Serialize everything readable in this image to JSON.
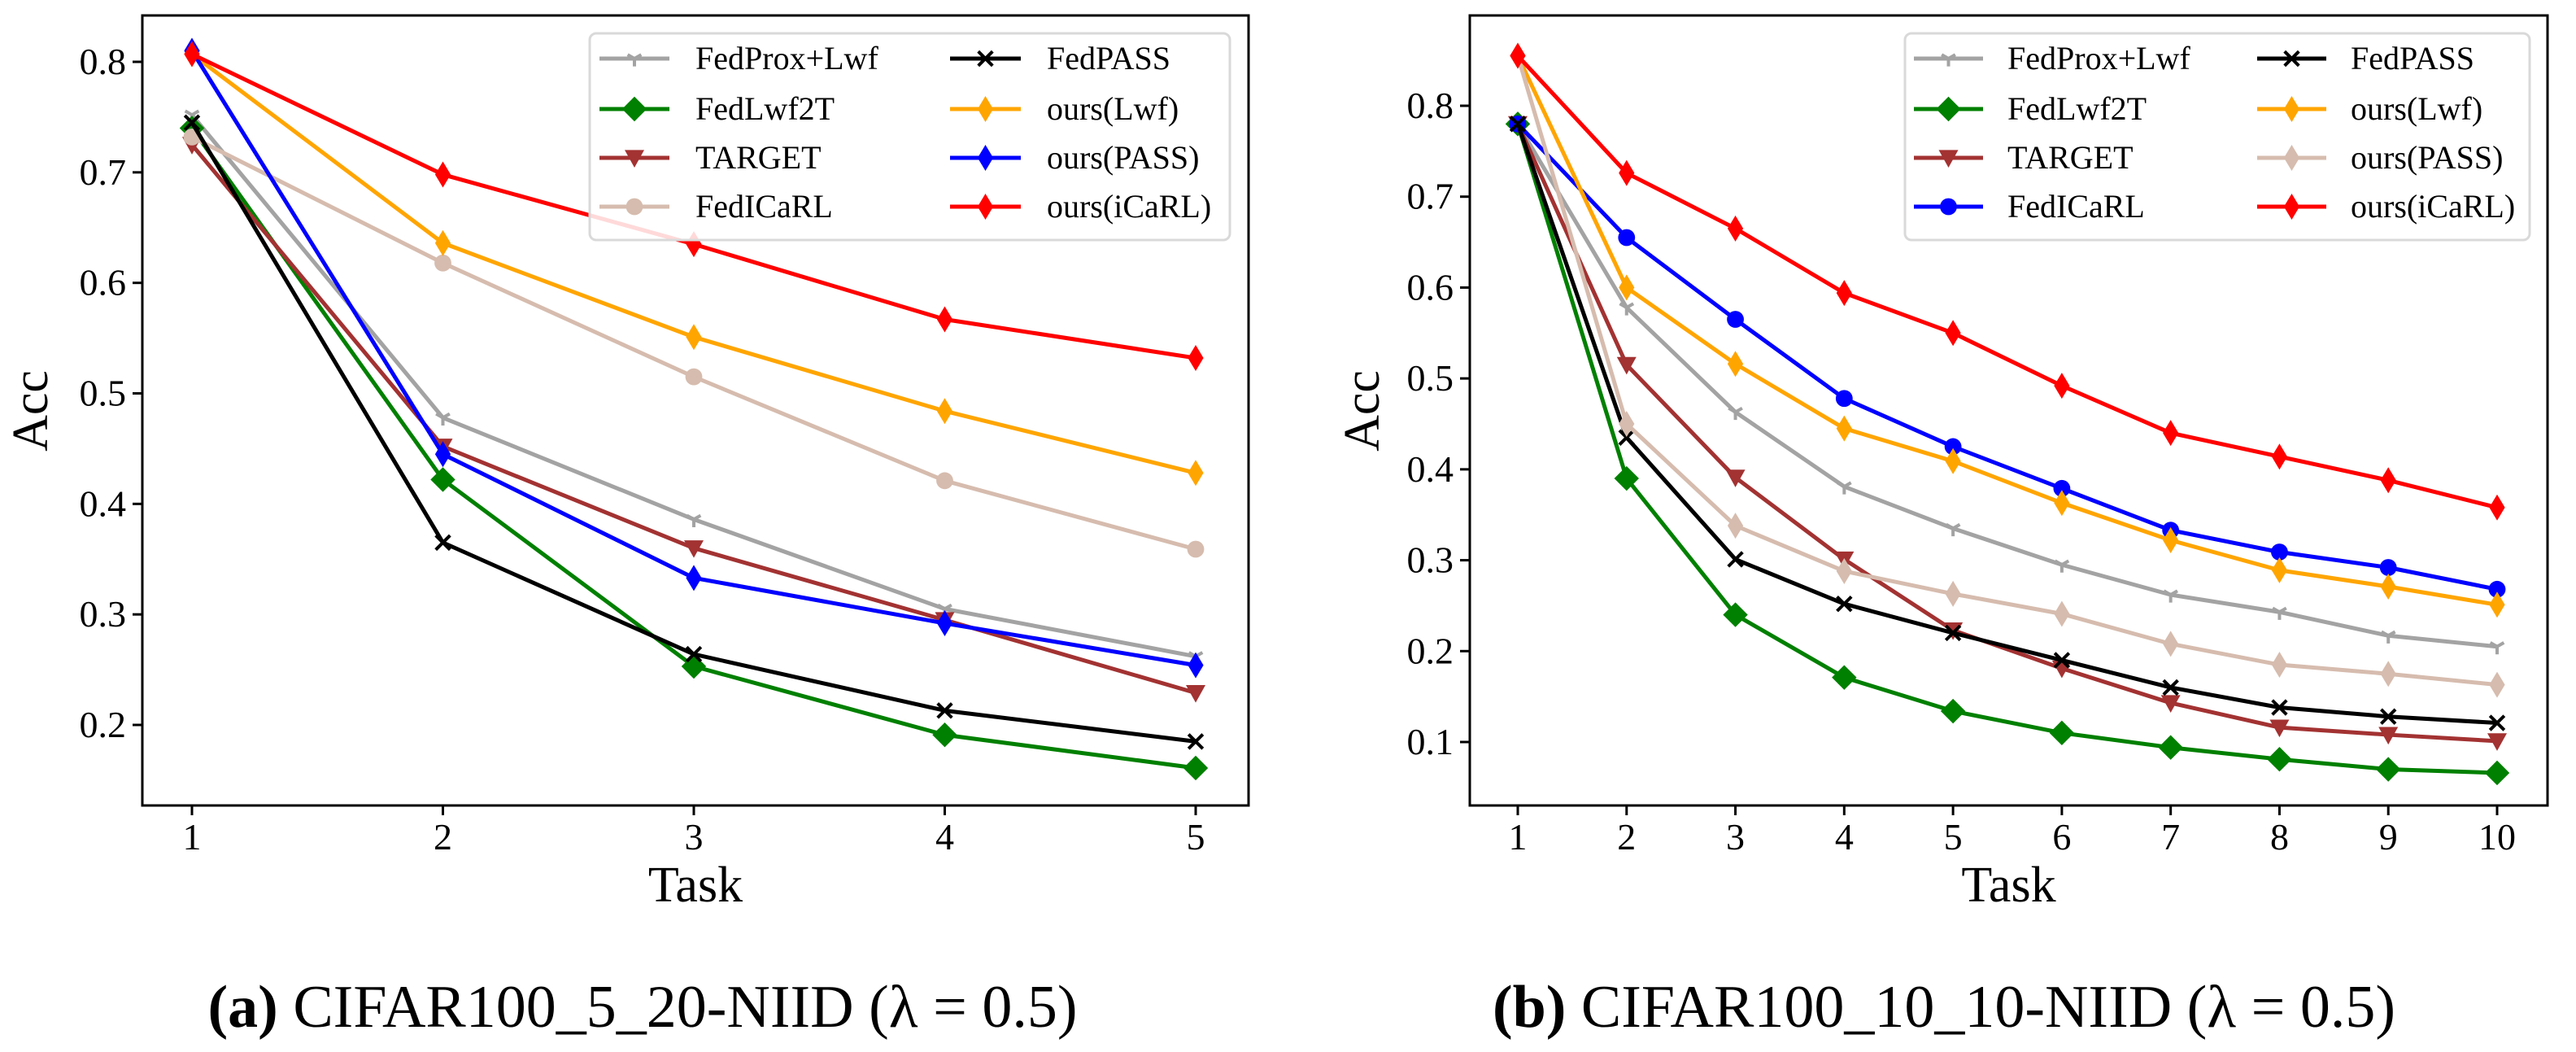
{
  "chart_data": [
    {
      "type": "line",
      "caption_label": "(a)",
      "caption_text": " CIFAR100_5_20-NIID (λ = 0.5)",
      "xlabel": "Task",
      "ylabel": "Acc",
      "x": [
        1,
        2,
        3,
        4,
        5
      ],
      "xticks": [
        "1",
        "2",
        "3",
        "4",
        "5"
      ],
      "yticks": [
        "0.2",
        "0.3",
        "0.4",
        "0.5",
        "0.6",
        "0.7",
        "0.8"
      ],
      "ytick_values": [
        0.2,
        0.3,
        0.4,
        0.5,
        0.6,
        0.7,
        0.8
      ],
      "legend_position": "top-right",
      "grid": false,
      "series": [
        {
          "name": "FedProx+Lwf",
          "color": "#a3a3a3",
          "marker": "tri_down",
          "values": [
            0.752,
            0.478,
            0.386,
            0.305,
            0.262
          ]
        },
        {
          "name": "FedLwf2T",
          "color": "#008000",
          "marker": "diamond",
          "values": [
            0.74,
            0.422,
            0.253,
            0.191,
            0.161
          ]
        },
        {
          "name": "TARGET",
          "color": "#a33232",
          "marker": "triangle_down",
          "values": [
            0.725,
            0.452,
            0.36,
            0.295,
            0.229
          ]
        },
        {
          "name": "FedICaRL",
          "color": "#d6bcae",
          "marker": "circle",
          "values": [
            0.732,
            0.618,
            0.515,
            0.421,
            0.359
          ]
        },
        {
          "name": "FedPASS",
          "color": "#000000",
          "marker": "x",
          "values": [
            0.745,
            0.365,
            0.264,
            0.213,
            0.185
          ]
        },
        {
          "name": "ours(Lwf)",
          "color": "#ffa500",
          "marker": "thin_diamond",
          "values": [
            0.807,
            0.636,
            0.551,
            0.484,
            0.428
          ]
        },
        {
          "name": "ours(PASS)",
          "color": "#0000ff",
          "marker": "thin_diamond",
          "values": [
            0.81,
            0.445,
            0.333,
            0.292,
            0.254
          ]
        },
        {
          "name": "ours(iCaRL)",
          "color": "#ff0000",
          "marker": "thin_diamond",
          "values": [
            0.807,
            0.698,
            0.635,
            0.567,
            0.532
          ]
        }
      ]
    },
    {
      "type": "line",
      "caption_label": "(b)",
      "caption_text": " CIFAR100_10_10-NIID (λ = 0.5)",
      "xlabel": "Task",
      "ylabel": "Acc",
      "x": [
        1,
        2,
        3,
        4,
        5,
        6,
        7,
        8,
        9,
        10
      ],
      "xticks": [
        "1",
        "2",
        "3",
        "4",
        "5",
        "6",
        "7",
        "8",
        "9",
        "10"
      ],
      "yticks": [
        "0.1",
        "0.2",
        "0.3",
        "0.4",
        "0.5",
        "0.6",
        "0.7",
        "0.8"
      ],
      "ytick_values": [
        0.1,
        0.2,
        0.3,
        0.4,
        0.5,
        0.6,
        0.7,
        0.8
      ],
      "legend_position": "top-right",
      "grid": false,
      "series": [
        {
          "name": "FedProx+Lwf",
          "color": "#a3a3a3",
          "marker": "tri_down",
          "values": [
            0.78,
            0.578,
            0.463,
            0.381,
            0.335,
            0.295,
            0.262,
            0.243,
            0.217,
            0.205
          ]
        },
        {
          "name": "FedLwf2T",
          "color": "#008000",
          "marker": "diamond",
          "values": [
            0.78,
            0.39,
            0.24,
            0.171,
            0.134,
            0.11,
            0.094,
            0.081,
            0.07,
            0.066
          ]
        },
        {
          "name": "TARGET",
          "color": "#a33232",
          "marker": "triangle_down",
          "values": [
            0.78,
            0.515,
            0.391,
            0.301,
            0.223,
            0.181,
            0.143,
            0.116,
            0.108,
            0.101
          ]
        },
        {
          "name": "FedICaRL",
          "color": "#0000ff",
          "marker": "circle",
          "values": [
            0.78,
            0.655,
            0.565,
            0.478,
            0.425,
            0.379,
            0.333,
            0.309,
            0.292,
            0.268
          ]
        },
        {
          "name": "FedPASS",
          "color": "#000000",
          "marker": "x",
          "values": [
            0.78,
            0.435,
            0.301,
            0.252,
            0.22,
            0.19,
            0.16,
            0.138,
            0.128,
            0.121
          ]
        },
        {
          "name": "ours(Lwf)",
          "color": "#ffa500",
          "marker": "thin_diamond",
          "values": [
            0.855,
            0.6,
            0.516,
            0.445,
            0.409,
            0.363,
            0.322,
            0.289,
            0.271,
            0.251
          ]
        },
        {
          "name": "ours(PASS)",
          "color": "#d6bcae",
          "marker": "thin_diamond",
          "values": [
            0.855,
            0.45,
            0.338,
            0.288,
            0.263,
            0.241,
            0.208,
            0.185,
            0.175,
            0.163
          ]
        },
        {
          "name": "ours(iCaRL)",
          "color": "#ff0000",
          "marker": "thin_diamond",
          "values": [
            0.855,
            0.726,
            0.665,
            0.594,
            0.55,
            0.492,
            0.44,
            0.414,
            0.388,
            0.358
          ]
        }
      ]
    }
  ]
}
